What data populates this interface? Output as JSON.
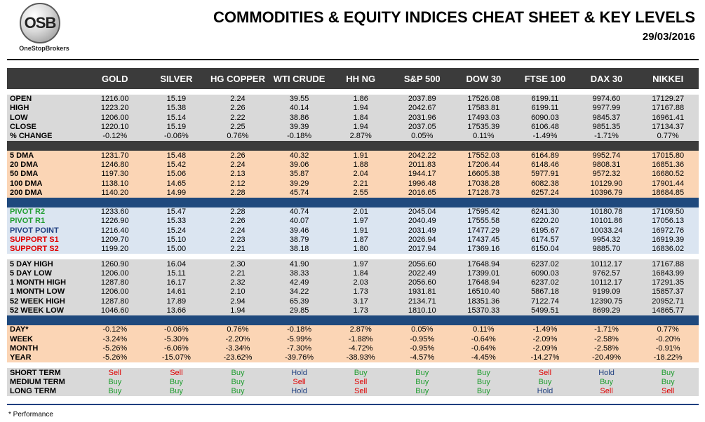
{
  "header": {
    "logo_text": "OSB",
    "logo_subtext": "OneStopBrokers",
    "title": "COMMODITIES & EQUITY INDICES CHEAT SHEET & KEY LEVELS",
    "date": "29/03/2016"
  },
  "colors": {
    "buy": "#1f9d2f",
    "sell": "#e00000",
    "hold": "#1f3f80",
    "pivot_resistance": "#1f9d2f",
    "pivot_support": "#e00000"
  },
  "columns": [
    "GOLD",
    "SILVER",
    "HG COPPER",
    "WTI CRUDE",
    "HH NG",
    "S&P 500",
    "DOW 30",
    "FTSE 100",
    "DAX 30",
    "NIKKEI"
  ],
  "groups": [
    {
      "id": "price",
      "rows": [
        {
          "label": "OPEN",
          "values": [
            "1216.00",
            "15.19",
            "2.24",
            "39.55",
            "1.86",
            "2037.89",
            "17526.08",
            "6199.11",
            "9974.60",
            "17129.27"
          ]
        },
        {
          "label": "HIGH",
          "values": [
            "1223.20",
            "15.38",
            "2.26",
            "40.14",
            "1.94",
            "2042.67",
            "17583.81",
            "6199.11",
            "9977.99",
            "17167.88"
          ]
        },
        {
          "label": "LOW",
          "values": [
            "1206.00",
            "15.14",
            "2.22",
            "38.86",
            "1.84",
            "2031.96",
            "17493.03",
            "6090.03",
            "9845.37",
            "16961.41"
          ]
        },
        {
          "label": "CLOSE",
          "values": [
            "1220.10",
            "15.19",
            "2.25",
            "39.39",
            "1.94",
            "2037.05",
            "17535.39",
            "6106.48",
            "9851.35",
            "17134.37"
          ]
        },
        {
          "label": "% CHANGE",
          "values": [
            "-0.12%",
            "-0.06%",
            "0.76%",
            "-0.18%",
            "2.87%",
            "0.05%",
            "0.11%",
            "-1.49%",
            "-1.71%",
            "0.77%"
          ]
        }
      ]
    },
    {
      "id": "dma",
      "rows": [
        {
          "label": "5 DMA",
          "values": [
            "1231.70",
            "15.48",
            "2.26",
            "40.32",
            "1.91",
            "2042.22",
            "17552.03",
            "6164.89",
            "9952.74",
            "17015.80"
          ]
        },
        {
          "label": "20 DMA",
          "values": [
            "1246.80",
            "15.42",
            "2.24",
            "39.06",
            "1.88",
            "2011.83",
            "17206.44",
            "6148.46",
            "9808.31",
            "16851.36"
          ]
        },
        {
          "label": "50 DMA",
          "values": [
            "1197.30",
            "15.06",
            "2.13",
            "35.87",
            "2.04",
            "1944.17",
            "16605.38",
            "5977.91",
            "9572.32",
            "16680.52"
          ]
        },
        {
          "label": "100 DMA",
          "values": [
            "1138.10",
            "14.65",
            "2.12",
            "39.29",
            "2.21",
            "1996.48",
            "17038.28",
            "6082.38",
            "10129.90",
            "17901.44"
          ]
        },
        {
          "label": "200 DMA",
          "values": [
            "1140.20",
            "14.99",
            "2.28",
            "45.74",
            "2.55",
            "2016.65",
            "17128.73",
            "6257.24",
            "10396.79",
            "18684.85"
          ]
        }
      ]
    },
    {
      "id": "pivot",
      "rows": [
        {
          "label": "PIVOT R2",
          "tone": "res",
          "values": [
            "1233.60",
            "15.47",
            "2.28",
            "40.74",
            "2.01",
            "2045.04",
            "17595.42",
            "6241.30",
            "10180.78",
            "17109.50"
          ]
        },
        {
          "label": "PIVOT R1",
          "tone": "res",
          "values": [
            "1226.90",
            "15.33",
            "2.26",
            "40.07",
            "1.97",
            "2040.49",
            "17555.58",
            "6220.20",
            "10101.86",
            "17056.13"
          ]
        },
        {
          "label": "PIVOT POINT",
          "tone": "pp",
          "values": [
            "1216.40",
            "15.24",
            "2.24",
            "39.46",
            "1.91",
            "2031.49",
            "17477.29",
            "6195.67",
            "10033.24",
            "16972.76"
          ]
        },
        {
          "label": "SUPPORT S1",
          "tone": "sup",
          "values": [
            "1209.70",
            "15.10",
            "2.23",
            "38.79",
            "1.87",
            "2026.94",
            "17437.45",
            "6174.57",
            "9954.32",
            "16919.39"
          ]
        },
        {
          "label": "SUPPORT S2",
          "tone": "sup",
          "values": [
            "1199.20",
            "15.00",
            "2.21",
            "38.18",
            "1.80",
            "2017.94",
            "17369.16",
            "6150.04",
            "9885.70",
            "16836.02"
          ]
        }
      ]
    },
    {
      "id": "range",
      "rows": [
        {
          "label": "5 DAY HIGH",
          "values": [
            "1260.90",
            "16.04",
            "2.30",
            "41.90",
            "1.97",
            "2056.60",
            "17648.94",
            "6237.02",
            "10112.17",
            "17167.88"
          ]
        },
        {
          "label": "5 DAY LOW",
          "values": [
            "1206.00",
            "15.11",
            "2.21",
            "38.33",
            "1.84",
            "2022.49",
            "17399.01",
            "6090.03",
            "9762.57",
            "16843.99"
          ]
        },
        {
          "label": "1 MONTH HIGH",
          "values": [
            "1287.80",
            "16.17",
            "2.32",
            "42.49",
            "2.03",
            "2056.60",
            "17648.94",
            "6237.02",
            "10112.17",
            "17291.35"
          ]
        },
        {
          "label": "1 MONTH LOW",
          "values": [
            "1206.00",
            "14.61",
            "2.10",
            "34.22",
            "1.73",
            "1931.81",
            "16510.40",
            "5867.18",
            "9199.09",
            "15857.37"
          ]
        },
        {
          "label": "52 WEEK HIGH",
          "values": [
            "1287.80",
            "17.89",
            "2.94",
            "65.39",
            "3.17",
            "2134.71",
            "18351.36",
            "7122.74",
            "12390.75",
            "20952.71"
          ]
        },
        {
          "label": "52 WEEK LOW",
          "values": [
            "1046.60",
            "13.66",
            "1.94",
            "29.85",
            "1.73",
            "1810.10",
            "15370.33",
            "5499.51",
            "8699.29",
            "14865.77"
          ]
        }
      ]
    },
    {
      "id": "perf",
      "rows": [
        {
          "label": "DAY*",
          "values": [
            "-0.12%",
            "-0.06%",
            "0.76%",
            "-0.18%",
            "2.87%",
            "0.05%",
            "0.11%",
            "-1.49%",
            "-1.71%",
            "0.77%"
          ]
        },
        {
          "label": "WEEK",
          "values": [
            "-3.24%",
            "-5.30%",
            "-2.20%",
            "-5.99%",
            "-1.88%",
            "-0.95%",
            "-0.64%",
            "-2.09%",
            "-2.58%",
            "-0.20%"
          ]
        },
        {
          "label": "MONTH",
          "values": [
            "-5.26%",
            "-6.06%",
            "-3.34%",
            "-7.30%",
            "-4.72%",
            "-0.95%",
            "-0.64%",
            "-2.09%",
            "-2.58%",
            "-0.91%"
          ]
        },
        {
          "label": "YEAR",
          "values": [
            "-5.26%",
            "-15.07%",
            "-23.62%",
            "-39.76%",
            "-38.93%",
            "-4.57%",
            "-4.45%",
            "-14.27%",
            "-20.49%",
            "-18.22%"
          ]
        }
      ]
    },
    {
      "id": "signal",
      "rows": [
        {
          "label": "SHORT TERM",
          "values": [
            "Sell",
            "Sell",
            "Buy",
            "Hold",
            "Buy",
            "Buy",
            "Buy",
            "Sell",
            "Hold",
            "Buy"
          ]
        },
        {
          "label": "MEDIUM TERM",
          "values": [
            "Buy",
            "Buy",
            "Buy",
            "Sell",
            "Sell",
            "Buy",
            "Buy",
            "Buy",
            "Buy",
            "Buy"
          ]
        },
        {
          "label": "LONG TERM",
          "values": [
            "Buy",
            "Buy",
            "Buy",
            "Hold",
            "Sell",
            "Buy",
            "Buy",
            "Hold",
            "Sell",
            "Sell"
          ]
        }
      ]
    }
  ],
  "footnote": "* Performance"
}
